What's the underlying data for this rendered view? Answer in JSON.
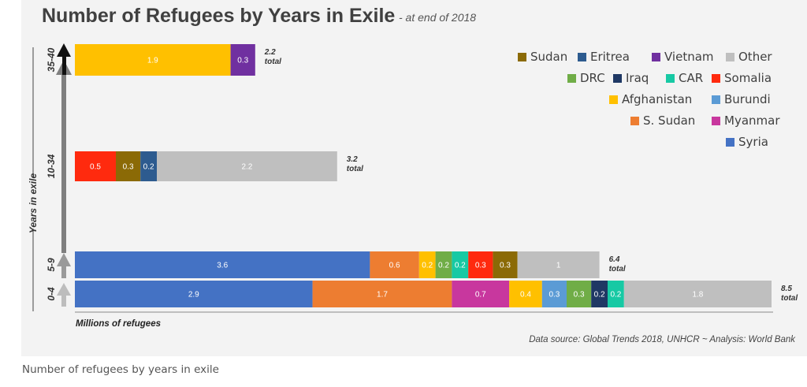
{
  "caption": "Number of refugees by years in exile",
  "chart_data": {
    "type": "bar",
    "orientation": "horizontal",
    "stacked": true,
    "title": "Number of Refugees by Years in Exile",
    "subtitle": "- at end of 2018",
    "xlabel": "Millions of refugees",
    "ylabel": "Years in exile",
    "source": "Data source: Global Trends 2018, UNHCR  ~  Analysis: World Bank",
    "total_word": "total",
    "xlim": [
      0,
      8.5
    ],
    "legend_position": "top-right",
    "grid": false,
    "categories": [
      "0-4",
      "5-9",
      "10-34",
      "35-40"
    ],
    "bars": [
      {
        "category": "35-40",
        "total": "2.2",
        "segments": [
          {
            "series": "Afghanistan",
            "value": 1.9
          },
          {
            "series": "Vietnam",
            "value": 0.3
          }
        ]
      },
      {
        "category": "10-34",
        "total": "3.2",
        "segments": [
          {
            "series": "Somalia",
            "value": 0.5
          },
          {
            "series": "Sudan",
            "value": 0.3
          },
          {
            "series": "Eritrea",
            "value": 0.2
          },
          {
            "series": "Other",
            "value": 2.2
          }
        ]
      },
      {
        "category": "5-9",
        "total": "6.4",
        "segments": [
          {
            "series": "Syria",
            "value": 3.6
          },
          {
            "series": "S. Sudan",
            "value": 0.6
          },
          {
            "series": "Afghanistan",
            "value": 0.2
          },
          {
            "series": "DRC",
            "value": 0.2
          },
          {
            "series": "CAR",
            "value": 0.2
          },
          {
            "series": "Somalia",
            "value": 0.3
          },
          {
            "series": "Sudan",
            "value": 0.3
          },
          {
            "series": "Other",
            "value": 1
          }
        ]
      },
      {
        "category": "0-4",
        "total": "8.5",
        "segments": [
          {
            "series": "Syria",
            "value": 2.9
          },
          {
            "series": "S. Sudan",
            "value": 1.7
          },
          {
            "series": "Myanmar",
            "value": 0.7
          },
          {
            "series": "Afghanistan",
            "value": 0.4
          },
          {
            "series": "Burundi",
            "value": 0.3
          },
          {
            "series": "DRC",
            "value": 0.3
          },
          {
            "series": "Iraq",
            "value": 0.2
          },
          {
            "series": "CAR",
            "value": 0.2
          },
          {
            "series": "Other",
            "value": 1.8
          }
        ]
      }
    ],
    "legend": [
      [
        "Sudan",
        "Eritrea",
        "Vietnam",
        "Other"
      ],
      [
        "DRC",
        "Iraq",
        "CAR",
        "Somalia"
      ],
      [
        "Afghanistan",
        "Burundi"
      ],
      [
        "S. Sudan",
        "Myanmar"
      ],
      [
        "Syria"
      ]
    ],
    "colors": {
      "Sudan": "#8b6a06",
      "Eritrea": "#2d5b8f",
      "Vietnam": "#7030a0",
      "Other": "#bfbfbf",
      "DRC": "#70ad47",
      "Iraq": "#1f3864",
      "CAR": "#17c9a4",
      "Somalia": "#ff2a0e",
      "Afghanistan": "#ffc000",
      "Burundi": "#5b9bd5",
      "S. Sudan": "#ed7d31",
      "Myanmar": "#c8379e",
      "Syria": "#4472c4"
    }
  }
}
